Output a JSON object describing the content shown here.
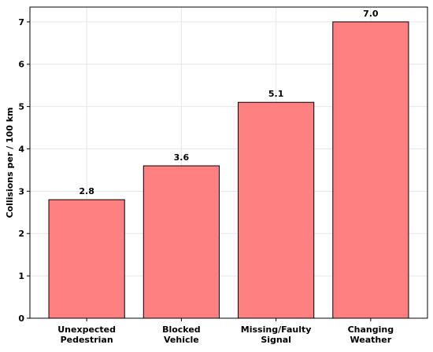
{
  "chart_data": {
    "type": "bar",
    "title": "",
    "xlabel": "",
    "ylabel": "Collisions per / 100 km",
    "ylim": [
      0,
      7.35
    ],
    "yticks": [
      0,
      1,
      2,
      3,
      4,
      5,
      6,
      7
    ],
    "grid": true,
    "categories": [
      [
        "Unexpected",
        "Pedestrian"
      ],
      [
        "Blocked",
        "Vehicle"
      ],
      [
        "Missing/Faulty",
        "Signal"
      ],
      [
        "Changing",
        "Weather"
      ]
    ],
    "values": [
      2.8,
      3.6,
      5.1,
      7.0
    ],
    "value_labels": [
      "2.8",
      "3.6",
      "5.1",
      "7.0"
    ],
    "colors": {
      "bar_fill": "#ff8080",
      "bar_edge": "#000000",
      "grid": "#e6e6e6"
    }
  }
}
